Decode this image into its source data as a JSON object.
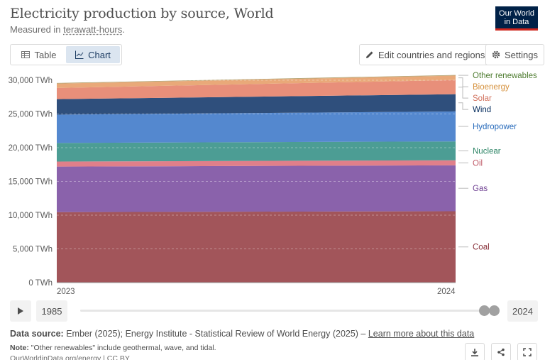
{
  "header": {
    "title": "Electricity production by source, World",
    "subtitle_prefix": "Measured in ",
    "subtitle_unit": "terawatt-hours",
    "subtitle_suffix": ".",
    "logo_line1": "Our World",
    "logo_line2": "in Data"
  },
  "tabs": [
    {
      "label": "Table",
      "icon": "table-icon",
      "active": false
    },
    {
      "label": "Chart",
      "icon": "chart-icon",
      "active": true
    }
  ],
  "toolbar": {
    "edit_label": "Edit countries and regions",
    "settings_label": "Settings"
  },
  "timeline": {
    "start_year": "1985",
    "end_year": "2024"
  },
  "footer": {
    "source_label": "Data source:",
    "source_text": " Ember (2025); Energy Institute - Statistical Review of World Energy (2025) – ",
    "source_link": "Learn more about this data",
    "note_label": "Note:",
    "note_text": " \"Other renewables\" include geothermal, wave, and tidal.",
    "url": "OurWorldinData.org/energy | CC BY"
  },
  "chart_data": {
    "type": "area",
    "stacked": true,
    "x": [
      "2023",
      "2024"
    ],
    "ylim": [
      0,
      30000
    ],
    "yticks": [
      "0 TWh",
      "5,000 TWh",
      "10,000 TWh",
      "15,000 TWh",
      "20,000 TWh",
      "25,000 TWh",
      "30,000 TWh"
    ],
    "ytick_values": [
      0,
      5000,
      10000,
      15000,
      20000,
      25000,
      30000
    ],
    "grid": true,
    "legend": "right",
    "series": [
      {
        "name": "Coal",
        "values": [
          10450,
          10580
        ],
        "color": "#a2555a",
        "label_color": "#883039"
      },
      {
        "name": "Gas",
        "values": [
          6750,
          6800
        ],
        "color": "#8a62ab",
        "label_color": "#6d3e91"
      },
      {
        "name": "Oil",
        "values": [
          750,
          750
        ],
        "color": "#e07f8a",
        "label_color": "#c05967"
      },
      {
        "name": "Nuclear",
        "values": [
          2750,
          2800
        ],
        "color": "#4c9d94",
        "label_color": "#2c8465"
      },
      {
        "name": "Hydropower",
        "values": [
          4200,
          4450
        ],
        "color": "#5488cf",
        "label_color": "#286bbb"
      },
      {
        "name": "Wind",
        "values": [
          2300,
          2550
        ],
        "color": "#2f4f7c",
        "label_color": "#00295b"
      },
      {
        "name": "Solar",
        "values": [
          1650,
          2100
        ],
        "color": "#e88f7a",
        "label_color": "#d1705c"
      },
      {
        "name": "Bioenergy",
        "values": [
          650,
          650
        ],
        "color": "#e9a979",
        "label_color": "#d5903b"
      },
      {
        "name": "Other renewables",
        "values": [
          90,
          95
        ],
        "color": "#b6a270",
        "label_color": "#4f7d31"
      }
    ]
  }
}
